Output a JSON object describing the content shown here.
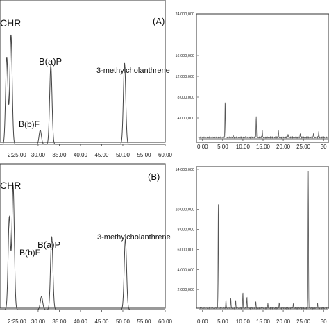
{
  "chart_data": [
    {
      "type": "line",
      "panel_label": "(A)",
      "xlim": [
        21,
        60
      ],
      "x_ticks": [
        "25.00",
        "30.00",
        "35.00",
        "40.00",
        "45.00",
        "50.00",
        "55.00",
        "60.00"
      ],
      "x_tick_first_label": "2:25.00",
      "peaks": [
        {
          "rt": 22.6,
          "h": 0.74
        },
        {
          "rt": 23.6,
          "h": 0.93,
          "label": "CHR"
        },
        {
          "rt": 30.5,
          "h": 0.12,
          "label": "B(b)F"
        },
        {
          "rt": 33.0,
          "h": 0.67,
          "label": "B(a)P"
        },
        {
          "rt": 50.4,
          "h": 0.69,
          "label": "3-methylcholanthrene"
        }
      ],
      "annotations": [
        "CHR",
        "B(b)F",
        "B(a)P",
        "3-methylcholanthrene"
      ]
    },
    {
      "type": "line",
      "xlim": [
        -1,
        31
      ],
      "ylim": [
        0,
        24000000
      ],
      "x_ticks": [
        "0.00",
        "5.00",
        "10.00",
        "15.00",
        "20.00",
        "25.00",
        "30.00"
      ],
      "x_tick_last_label": "30",
      "y_ticks": [
        "24,000,000",
        "16,000,000",
        "12,000,000",
        "8,000,000",
        "4,000,000"
      ],
      "y_tick_values": [
        24000000,
        16000000,
        12000000,
        8000000,
        4000000
      ],
      "peaks": [
        {
          "rt": 5.6,
          "v": 7000000
        },
        {
          "rt": 7.6,
          "v": 400000
        },
        {
          "rt": 13.3,
          "v": 4000000
        },
        {
          "rt": 14.8,
          "v": 1500000
        },
        {
          "rt": 18.8,
          "v": 1300000
        },
        {
          "rt": 21.2,
          "v": 600000
        },
        {
          "rt": 24.2,
          "v": 700000
        },
        {
          "rt": 27.5,
          "v": 800000
        },
        {
          "rt": 28.8,
          "v": 1200000
        }
      ]
    },
    {
      "type": "line",
      "panel_label": "(B)",
      "xlim": [
        21,
        60
      ],
      "x_ticks": [
        "25.00",
        "30.00",
        "35.00",
        "40.00",
        "45.00",
        "50.00",
        "55.00",
        "60.00"
      ],
      "x_tick_first_label": "2:25.00",
      "peaks": [
        {
          "rt": 23.2,
          "h": 0.71
        },
        {
          "rt": 24.1,
          "h": 0.95,
          "label": "CHR"
        },
        {
          "rt": 30.8,
          "h": 0.1,
          "label": "B(b)F"
        },
        {
          "rt": 33.2,
          "h": 0.56,
          "label": "B(a)P"
        },
        {
          "rt": 50.6,
          "h": 0.54,
          "label": "3-methylcholanthrene"
        }
      ],
      "annotations": [
        "CHR",
        "B(b)F",
        "B(a)P",
        "3-methylcholanthrene"
      ]
    },
    {
      "type": "line",
      "xlim": [
        -1,
        31
      ],
      "ylim": [
        0,
        14000000
      ],
      "x_ticks": [
        "0.00",
        "5.00",
        "10.00",
        "15.00",
        "20.00",
        "25.00",
        "30.00"
      ],
      "x_tick_last_label": "30",
      "y_ticks": [
        "14,000,000",
        "10,000,000",
        "8,000,000",
        "6,000,000",
        "4,000,000",
        "2,000,000"
      ],
      "y_tick_values": [
        14000000,
        10000000,
        8000000,
        6000000,
        4000000,
        2000000
      ],
      "peaks": [
        {
          "rt": 3.9,
          "v": 10500000
        },
        {
          "rt": 5.8,
          "v": 900000
        },
        {
          "rt": 7.0,
          "v": 1000000
        },
        {
          "rt": 8.2,
          "v": 800000
        },
        {
          "rt": 10.0,
          "v": 1600000
        },
        {
          "rt": 11.0,
          "v": 1100000
        },
        {
          "rt": 13.2,
          "v": 700000
        },
        {
          "rt": 16.2,
          "v": 500000
        },
        {
          "rt": 19.0,
          "v": 600000
        },
        {
          "rt": 22.5,
          "v": 500000
        },
        {
          "rt": 26.2,
          "v": 13700000
        },
        {
          "rt": 28.5,
          "v": 500000
        }
      ]
    }
  ]
}
